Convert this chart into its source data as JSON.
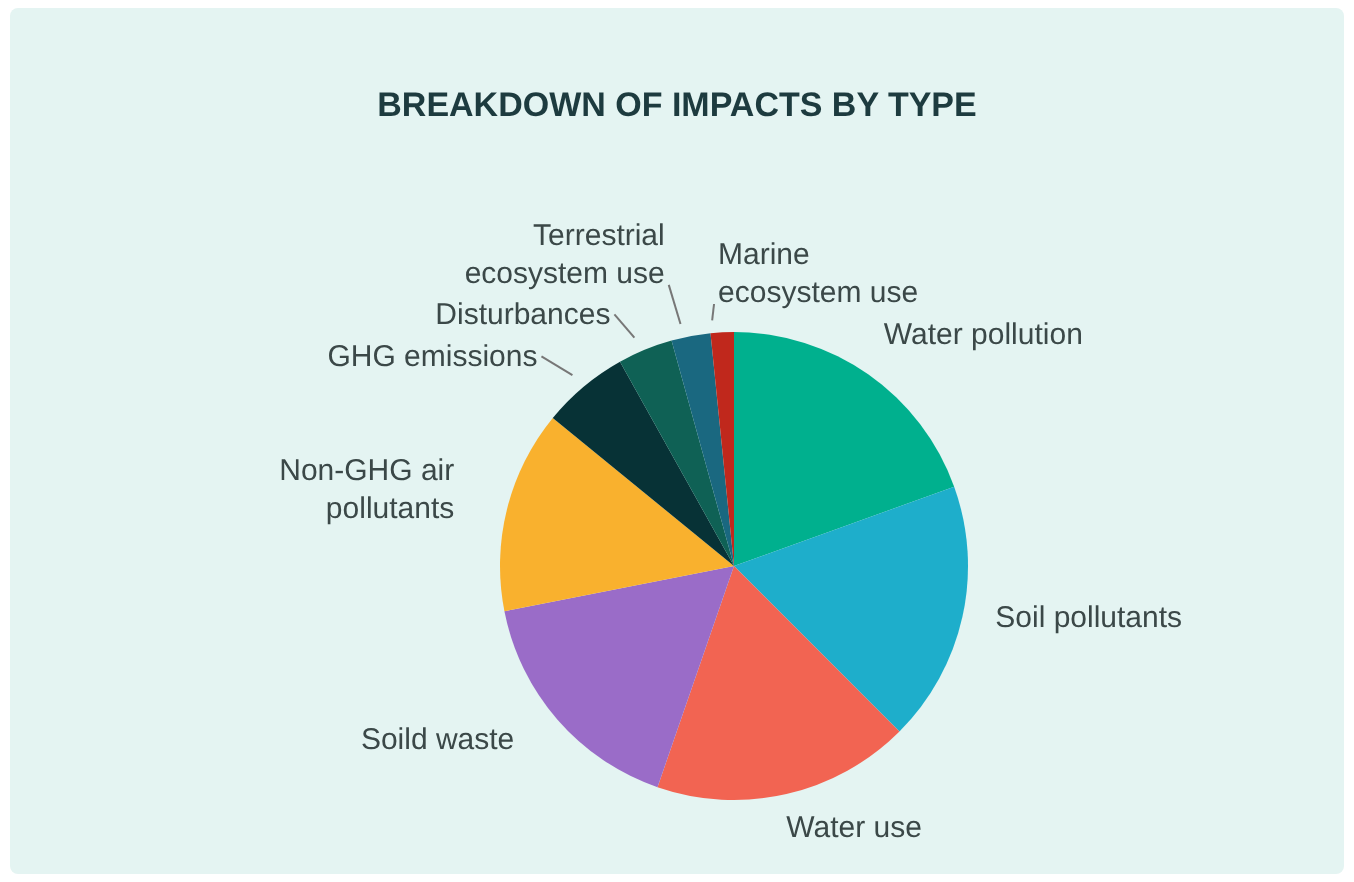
{
  "chart_data": {
    "type": "pie",
    "title": "BREAKDOWN OF IMPACTS BY TYPE",
    "categories": [
      "Water pollution",
      "Soil pollutants",
      "Water use",
      "Soild waste",
      "Non-GHG air pollutants",
      "GHG emissions",
      "Disturbances",
      "Terrestrial ecosystem use",
      "Marine ecosystem use"
    ],
    "values": [
      19.5,
      18,
      17.8,
      16.6,
      14,
      6,
      3.8,
      2.7,
      1.6
    ],
    "colors": [
      "#00b08e",
      "#1eaecb",
      "#f26452",
      "#9a6cc8",
      "#f9b12e",
      "#073236",
      "#0f6155",
      "#1a6880",
      "#c0281c"
    ],
    "legend": false
  }
}
